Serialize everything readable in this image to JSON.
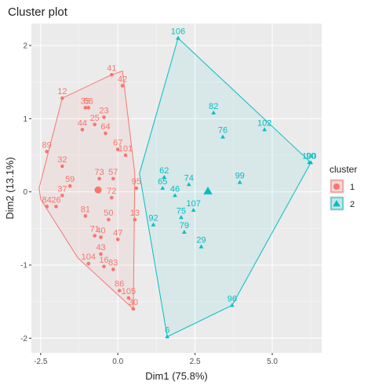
{
  "chart_data": {
    "type": "scatter",
    "title": "Cluster plot",
    "xlabel": "Dim1 (75.8%)",
    "ylabel": "Dim2 (13.1%)",
    "xlim": [
      -2.8,
      6.6
    ],
    "ylim": [
      -2.2,
      2.3
    ],
    "x_ticks": [
      -2.5,
      0,
      2.5,
      5
    ],
    "x_tick_labels": [
      "-2.5",
      "0.0",
      "2.5",
      "5.0"
    ],
    "y_ticks": [
      -2,
      -1,
      0,
      1,
      2
    ],
    "y_tick_labels": [
      "-2",
      "-1",
      "0",
      "1",
      "2"
    ],
    "grid": true,
    "legend": {
      "title": "cluster",
      "position": "right",
      "entries": [
        {
          "label": "1",
          "color": "#F8766D",
          "shape": "circle"
        },
        {
          "label": "2",
          "color": "#00BFC4",
          "shape": "triangle"
        }
      ]
    },
    "series": [
      {
        "name": "1",
        "color": "#F8766D",
        "shape": "circle",
        "hull": [
          [
            -0.2,
            1.6
          ],
          [
            -1.8,
            1.28
          ],
          [
            -2.55,
            0.05
          ],
          [
            -2.5,
            -0.1
          ],
          [
            -1.3,
            -0.9
          ],
          [
            0.5,
            -1.6
          ],
          [
            0.55,
            0.25
          ],
          [
            0.15,
            1.65
          ]
        ],
        "points": [
          {
            "label": "41",
            "x": -0.2,
            "y": 1.6
          },
          {
            "label": "42",
            "x": 0.15,
            "y": 1.45
          },
          {
            "label": "12",
            "x": -1.8,
            "y": 1.28
          },
          {
            "label": "35",
            "x": -1.05,
            "y": 1.15
          },
          {
            "label": "56",
            "x": -0.95,
            "y": 1.15
          },
          {
            "label": "23",
            "x": -0.45,
            "y": 1.02
          },
          {
            "label": "25",
            "x": -0.75,
            "y": 0.92
          },
          {
            "label": "44",
            "x": -1.15,
            "y": 0.85
          },
          {
            "label": "64",
            "x": -0.4,
            "y": 0.8
          },
          {
            "label": "89",
            "x": -2.3,
            "y": 0.55
          },
          {
            "label": "67",
            "x": 0.0,
            "y": 0.58
          },
          {
            "label": "101",
            "x": 0.25,
            "y": 0.5
          },
          {
            "label": "32",
            "x": -1.8,
            "y": 0.35
          },
          {
            "label": "59",
            "x": -1.55,
            "y": 0.08
          },
          {
            "label": "73",
            "x": -0.6,
            "y": 0.18
          },
          {
            "label": "57",
            "x": -0.15,
            "y": 0.18
          },
          {
            "label": "37",
            "x": -1.8,
            "y": -0.05
          },
          {
            "label": "72",
            "x": -0.2,
            "y": -0.08
          },
          {
            "label": "95",
            "x": 0.6,
            "y": 0.05
          },
          {
            "label": "84",
            "x": -2.3,
            "y": -0.2
          },
          {
            "label": "26",
            "x": -2.0,
            "y": -0.2
          },
          {
            "label": "81",
            "x": -1.05,
            "y": -0.33
          },
          {
            "label": "13",
            "x": 0.55,
            "y": -0.38
          },
          {
            "label": "50",
            "x": -0.3,
            "y": -0.38
          },
          {
            "label": "40",
            "x": -0.55,
            "y": -0.62
          },
          {
            "label": "47",
            "x": 0.0,
            "y": -0.65
          },
          {
            "label": "71",
            "x": -0.75,
            "y": -0.6
          },
          {
            "label": "43",
            "x": -0.55,
            "y": -0.85
          },
          {
            "label": "104",
            "x": -0.95,
            "y": -0.98
          },
          {
            "label": "16",
            "x": -0.45,
            "y": -1.02
          },
          {
            "label": "83",
            "x": -0.15,
            "y": -1.06
          },
          {
            "label": "86",
            "x": 0.05,
            "y": -1.35
          },
          {
            "label": "105",
            "x": 0.35,
            "y": -1.45
          },
          {
            "label": "30",
            "x": 0.5,
            "y": -1.6
          }
        ]
      },
      {
        "name": "2",
        "color": "#00BFC4",
        "shape": "triangle",
        "hull": [
          [
            1.95,
            2.1
          ],
          [
            6.25,
            0.4
          ],
          [
            3.7,
            -1.55
          ],
          [
            1.6,
            -1.98
          ],
          [
            0.7,
            0.25
          ]
        ],
        "points": [
          {
            "label": "106",
            "x": 1.95,
            "y": 2.1
          },
          {
            "label": "82",
            "x": 3.1,
            "y": 1.08
          },
          {
            "label": "102",
            "x": 4.75,
            "y": 0.85
          },
          {
            "label": "76",
            "x": 3.4,
            "y": 0.75
          },
          {
            "label": "100",
            "x": 6.2,
            "y": 0.4
          },
          {
            "label": "90",
            "x": 6.25,
            "y": 0.4
          },
          {
            "label": "62",
            "x": 1.5,
            "y": 0.2
          },
          {
            "label": "99",
            "x": 3.95,
            "y": 0.13
          },
          {
            "label": "74",
            "x": 2.3,
            "y": 0.1
          },
          {
            "label": "65",
            "x": 1.45,
            "y": 0.05
          },
          {
            "label": "46",
            "x": 1.85,
            "y": -0.05
          },
          {
            "label": "107",
            "x": 2.45,
            "y": -0.25
          },
          {
            "label": "75",
            "x": 2.05,
            "y": -0.35
          },
          {
            "label": "79",
            "x": 2.15,
            "y": -0.55
          },
          {
            "label": "92",
            "x": 1.15,
            "y": -0.45
          },
          {
            "label": "29",
            "x": 2.7,
            "y": -0.75
          },
          {
            "label": "96",
            "x": 3.7,
            "y": -1.55
          },
          {
            "label": "6",
            "x": 1.6,
            "y": -1.98
          }
        ]
      }
    ]
  }
}
